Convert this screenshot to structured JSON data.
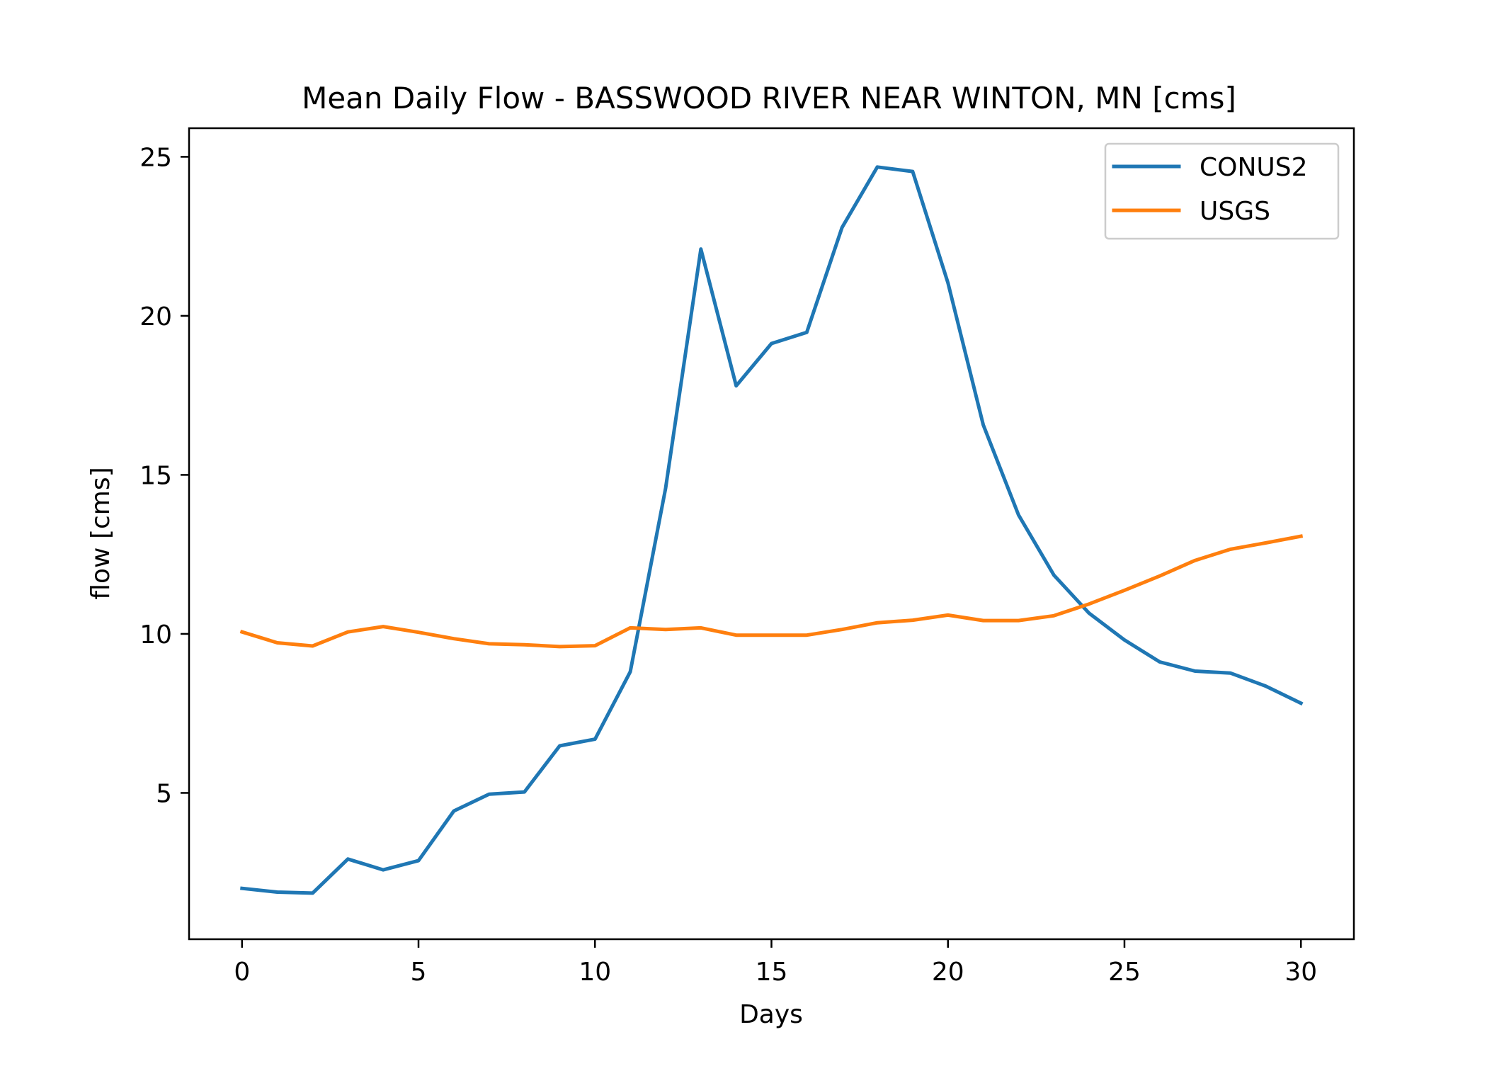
{
  "chart_data": {
    "type": "line",
    "title": "Mean Daily Flow - BASSWOOD RIVER NEAR WINTON, MN [cms]",
    "xlabel": "Days",
    "ylabel": "flow [cms]",
    "xlim": [
      -1.5,
      31.5
    ],
    "ylim": [
      0.4,
      25.9
    ],
    "xticks": [
      0,
      5,
      10,
      15,
      20,
      25,
      30
    ],
    "yticks": [
      5,
      10,
      15,
      20,
      25
    ],
    "grid": false,
    "legend": "top-right",
    "x": [
      0,
      1,
      2,
      3,
      4,
      5,
      6,
      7,
      8,
      9,
      10,
      11,
      12,
      13,
      14,
      15,
      16,
      17,
      18,
      19,
      20,
      21,
      22,
      23,
      24,
      25,
      26,
      27,
      28,
      29,
      30
    ],
    "series": [
      {
        "name": "CONUS2",
        "color": "#1f77b4",
        "values": [
          2.0,
          1.88,
          1.85,
          2.92,
          2.58,
          2.87,
          4.43,
          4.96,
          5.03,
          6.48,
          6.69,
          8.81,
          14.58,
          22.1,
          17.8,
          19.13,
          19.48,
          22.78,
          24.68,
          24.54,
          21.04,
          16.57,
          13.74,
          11.85,
          10.65,
          9.81,
          9.12,
          8.83,
          8.77,
          8.36,
          7.82
        ]
      },
      {
        "name": "USGS",
        "color": "#ff7f0e",
        "values": [
          10.06,
          9.72,
          9.62,
          10.06,
          10.23,
          10.05,
          9.85,
          9.69,
          9.66,
          9.6,
          9.63,
          10.19,
          10.14,
          10.19,
          9.96,
          9.96,
          9.96,
          10.14,
          10.35,
          10.43,
          10.59,
          10.42,
          10.42,
          10.57,
          10.94,
          11.37,
          11.82,
          12.31,
          12.66,
          12.86,
          13.07
        ]
      }
    ]
  }
}
